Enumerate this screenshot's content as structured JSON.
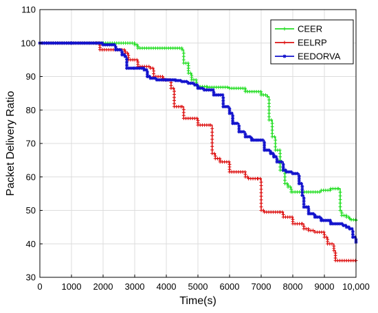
{
  "chart_data": {
    "type": "line",
    "title": "",
    "xlabel": "Time(s)",
    "ylabel": "Packet Delivery Ratio",
    "xlim": [
      0,
      10000
    ],
    "ylim": [
      30,
      110
    ],
    "x_ticks": [
      0,
      1000,
      2000,
      3000,
      4000,
      5000,
      6000,
      7000,
      8000,
      9000,
      10000
    ],
    "x_tick_labels": [
      "0",
      "1000",
      "2000",
      "3000",
      "4000",
      "5000",
      "6000",
      "7000",
      "8000",
      "9000",
      "10,000"
    ],
    "y_ticks": [
      30,
      40,
      50,
      60,
      70,
      80,
      90,
      100,
      110
    ],
    "y_tick_labels": [
      "30",
      "40",
      "50",
      "60",
      "70",
      "80",
      "90",
      "100",
      "110"
    ],
    "grid": true,
    "legend_position": "top-right",
    "series": [
      {
        "name": "CEER",
        "color": "#22dd22",
        "marker": "+",
        "x": [
          0,
          1000,
          1800,
          3000,
          3100,
          4000,
          4500,
          4550,
          4700,
          4800,
          4950,
          5000,
          5300,
          6000,
          6500,
          7000,
          7200,
          7250,
          7350,
          7450,
          7600,
          7750,
          7850,
          7950,
          8000,
          8300,
          8500,
          8900,
          9200,
          9450,
          9500,
          9550,
          9700,
          9800,
          9850,
          10000
        ],
        "y": [
          100,
          100,
          100,
          99.5,
          98.5,
          98.5,
          98,
          94,
          91,
          89,
          87.5,
          87,
          86.8,
          86.5,
          85.5,
          84.5,
          84,
          77,
          72,
          68,
          62,
          58,
          57,
          55.5,
          55.5,
          55.5,
          55.5,
          56,
          56.5,
          56.5,
          50,
          48.5,
          48,
          47.5,
          47.2,
          47
        ]
      },
      {
        "name": "EELRP",
        "color": "#dd1111",
        "marker": "+",
        "x": [
          0,
          1000,
          1800,
          1900,
          2700,
          2800,
          3000,
          3100,
          3500,
          3600,
          3900,
          4100,
          4150,
          4250,
          4500,
          4550,
          5000,
          5400,
          5450,
          5550,
          5700,
          6000,
          6500,
          6600,
          6900,
          7000,
          7100,
          7600,
          7700,
          8000,
          8300,
          8350,
          8500,
          8700,
          9000,
          9100,
          9300,
          9350,
          10000
        ],
        "y": [
          100,
          100,
          100,
          98,
          97,
          95,
          95,
          93,
          92.5,
          90,
          89,
          89,
          86.5,
          81,
          81,
          77.5,
          75.5,
          75.5,
          67,
          65.5,
          64.5,
          61.5,
          60,
          59.5,
          59.5,
          50,
          49.5,
          49.5,
          48,
          46,
          46,
          44.5,
          44,
          43.5,
          42,
          40,
          38,
          35,
          35
        ]
      },
      {
        "name": "EEDORVA",
        "color": "#1111cc",
        "marker": "*",
        "x": [
          0,
          1000,
          1900,
          2000,
          2400,
          2600,
          2700,
          2750,
          3000,
          3300,
          3400,
          3500,
          3700,
          4000,
          4300,
          4500,
          4700,
          4900,
          5000,
          5200,
          5500,
          5800,
          6000,
          6100,
          6300,
          6500,
          6700,
          6900,
          7100,
          7300,
          7400,
          7500,
          7700,
          7800,
          8000,
          8200,
          8300,
          8350,
          8500,
          8700,
          8900,
          9200,
          9600,
          9700,
          9800,
          9900,
          10000
        ],
        "y": [
          100,
          100,
          100,
          99.5,
          98,
          96.5,
          96,
          92.5,
          92.5,
          92,
          90,
          89.5,
          89,
          89,
          88.8,
          88.5,
          88,
          87.5,
          86.5,
          86,
          84.5,
          81,
          79,
          76,
          73.5,
          72,
          71,
          71,
          68,
          67,
          66,
          64.5,
          62,
          61.5,
          61,
          58,
          54.5,
          51,
          49,
          48,
          47,
          46,
          45.5,
          45,
          44.5,
          42,
          40.5
        ]
      }
    ]
  }
}
